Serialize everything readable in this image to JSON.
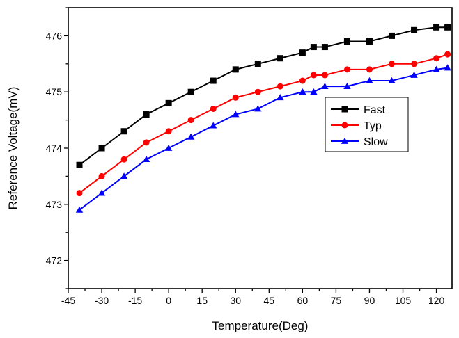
{
  "chart_data": {
    "type": "line",
    "xlabel": "Temperature(Deg)",
    "ylabel": "Reference Voltage(mV)",
    "xlim": [
      -45,
      127
    ],
    "ylim": [
      471.5,
      476.5
    ],
    "xticks": [
      -45,
      -30,
      -15,
      0,
      15,
      30,
      45,
      60,
      75,
      90,
      105,
      120
    ],
    "yticks": [
      472,
      473,
      474,
      475,
      476
    ],
    "grid": false,
    "legend_position": "center-right",
    "series": [
      {
        "name": "Fast",
        "color": "#000000",
        "marker": "square",
        "x": [
          -40,
          -30,
          -20,
          -10,
          0,
          10,
          20,
          30,
          40,
          50,
          60,
          65,
          70,
          80,
          90,
          100,
          110,
          120,
          125
        ],
        "y": [
          473.7,
          474.0,
          474.3,
          474.6,
          474.8,
          475.0,
          475.2,
          475.4,
          475.5,
          475.6,
          475.7,
          475.8,
          475.8,
          475.9,
          475.9,
          476.0,
          476.1,
          476.15,
          476.15
        ]
      },
      {
        "name": "Typ",
        "color": "#ff0000",
        "marker": "circle",
        "x": [
          -40,
          -30,
          -20,
          -10,
          0,
          10,
          20,
          30,
          40,
          50,
          60,
          65,
          70,
          80,
          90,
          100,
          110,
          120,
          125
        ],
        "y": [
          473.2,
          473.5,
          473.8,
          474.1,
          474.3,
          474.5,
          474.7,
          474.9,
          475.0,
          475.1,
          475.2,
          475.3,
          475.3,
          475.4,
          475.4,
          475.5,
          475.5,
          475.6,
          475.67
        ]
      },
      {
        "name": "Slow",
        "color": "#0000ff",
        "marker": "triangle",
        "x": [
          -40,
          -30,
          -20,
          -10,
          0,
          10,
          20,
          30,
          40,
          50,
          60,
          65,
          70,
          80,
          90,
          100,
          110,
          120,
          125
        ],
        "y": [
          472.9,
          473.2,
          473.5,
          473.8,
          474.0,
          474.2,
          474.4,
          474.6,
          474.7,
          474.9,
          475.0,
          475.0,
          475.1,
          475.1,
          475.2,
          475.2,
          475.3,
          475.4,
          475.43
        ]
      }
    ]
  }
}
